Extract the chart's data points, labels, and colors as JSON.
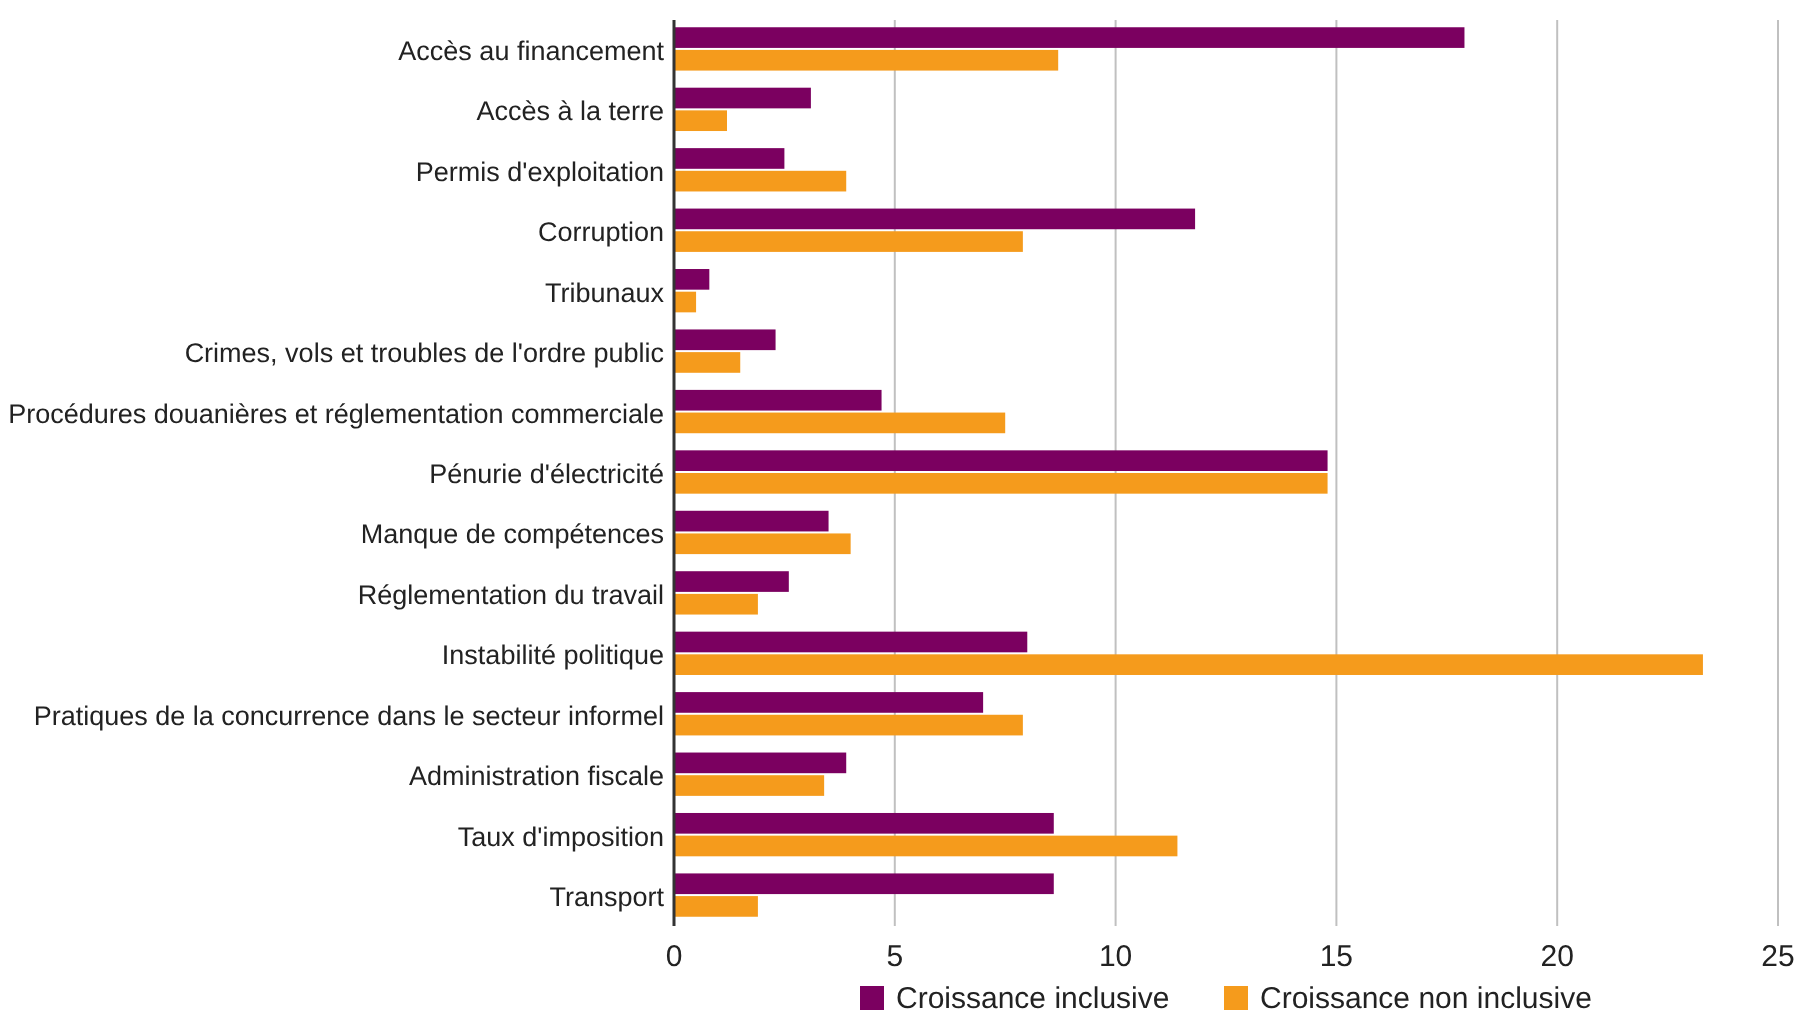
{
  "chart_data": {
    "type": "bar",
    "orientation": "horizontal",
    "categories": [
      "Accès au financement",
      "Accès à la terre",
      "Permis d'exploitation",
      "Corruption",
      "Tribunaux",
      "Crimes, vols et troubles de l'ordre public",
      "Procédures douanières et réglementation commerciale",
      "Pénurie d'électricité",
      "Manque de compétences",
      "Réglementation du travail",
      "Instabilité politique",
      "Pratiques de la concurrence dans le secteur informel",
      "Administration fiscale",
      "Taux d'imposition",
      "Transport"
    ],
    "series": [
      {
        "name": "Croissance inclusive",
        "color": "#7b0060",
        "values": [
          17.9,
          3.1,
          2.5,
          11.8,
          0.8,
          2.3,
          4.7,
          14.8,
          3.5,
          2.6,
          8.0,
          7.0,
          3.9,
          8.6,
          8.6
        ]
      },
      {
        "name": "Croissance non inclusive",
        "color": "#f59b1c",
        "values": [
          8.7,
          1.2,
          3.9,
          7.9,
          0.5,
          1.5,
          7.5,
          14.8,
          4.0,
          1.9,
          23.3,
          7.9,
          3.4,
          11.4,
          1.9
        ]
      }
    ],
    "xlim": [
      0,
      25
    ],
    "xticks": [
      0,
      5,
      10,
      15,
      20,
      25
    ],
    "grid": "x",
    "legend": "bottom"
  }
}
